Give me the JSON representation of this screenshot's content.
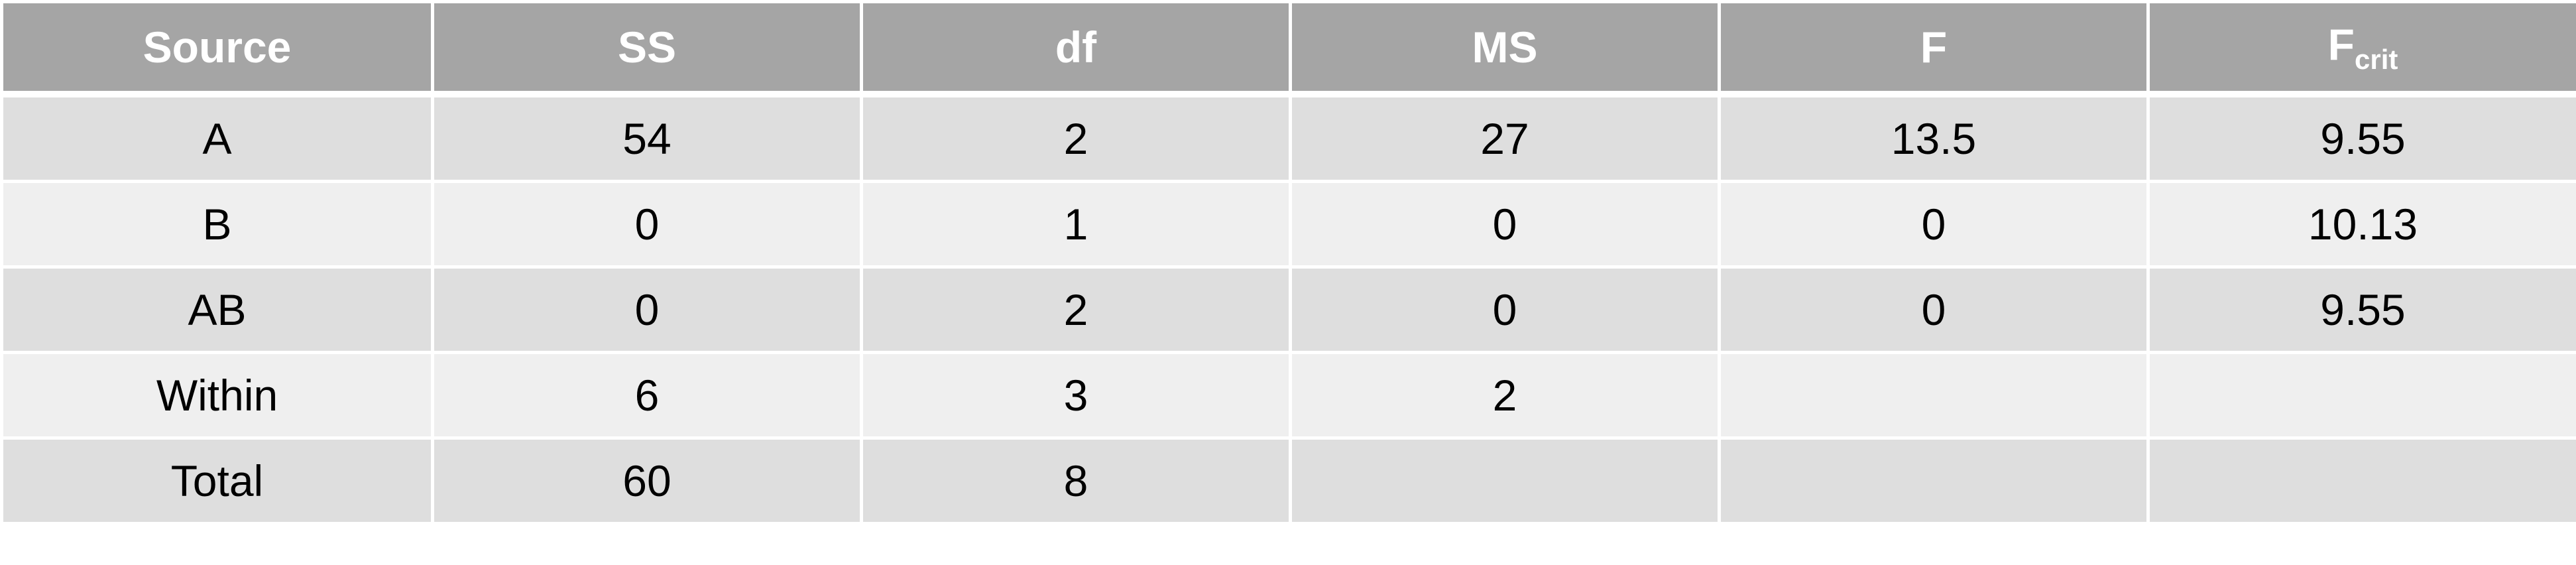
{
  "table": {
    "headers": {
      "source": "Source",
      "ss": "SS",
      "df": "df",
      "ms": "MS",
      "f": "F",
      "fcrit_main": "F",
      "fcrit_sub": "crit"
    },
    "rows": [
      {
        "source": "A",
        "ss": "54",
        "df": "2",
        "ms": "27",
        "f": "13.5",
        "fcrit": "9.55"
      },
      {
        "source": "B",
        "ss": "0",
        "df": "1",
        "ms": "0",
        "f": "0",
        "fcrit": "10.13"
      },
      {
        "source": "AB",
        "ss": "0",
        "df": "2",
        "ms": "0",
        "f": "0",
        "fcrit": "9.55"
      },
      {
        "source": "Within",
        "ss": "6",
        "df": "3",
        "ms": "2",
        "f": "",
        "fcrit": ""
      },
      {
        "source": "Total",
        "ss": "60",
        "df": "8",
        "ms": "",
        "f": "",
        "fcrit": ""
      }
    ]
  },
  "colors": {
    "header_bg": "#a5a5a5",
    "header_text": "#ffffff",
    "row_dark": "#dedede",
    "row_light": "#efefef"
  }
}
